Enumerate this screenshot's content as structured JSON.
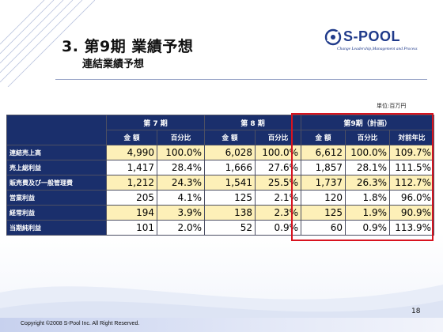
{
  "slide": {
    "title": "3. 第9期 業績予想",
    "subtitle": "連結業績予想",
    "page_number": "18",
    "copyright": "Copyright ©2008 S-Pool Inc. All Right Reserved."
  },
  "logo": {
    "name": "S-POOL",
    "tagline": "Change Leadership,Management and Process"
  },
  "table": {
    "unit": "単位:百万円",
    "groups": [
      "第 7 期",
      "第 8 期",
      "第9期（計画）"
    ],
    "subheaders": [
      "金 額",
      "百分比",
      "金 額",
      "百分比",
      "金 額",
      "百分比",
      "対前年比"
    ],
    "rows": [
      {
        "label": "連結売上高",
        "values": [
          "4,990",
          "100.0%",
          "6,028",
          "100.0%",
          "6,612",
          "100.0%",
          "109.7%"
        ]
      },
      {
        "label": "売上総利益",
        "values": [
          "1,417",
          "28.4%",
          "1,666",
          "27.6%",
          "1,857",
          "28.1%",
          "111.5%"
        ]
      },
      {
        "label": "販売費及び一般管理費",
        "values": [
          "1,212",
          "24.3%",
          "1,541",
          "25.5%",
          "1,737",
          "26.3%",
          "112.7%"
        ]
      },
      {
        "label": "営業利益",
        "values": [
          "205",
          "4.1%",
          "125",
          "2.1%",
          "120",
          "1.8%",
          "96.0%"
        ]
      },
      {
        "label": "経常利益",
        "values": [
          "194",
          "3.9%",
          "138",
          "2.3%",
          "125",
          "1.9%",
          "90.9%"
        ]
      },
      {
        "label": "当期純利益",
        "values": [
          "101",
          "2.0%",
          "52",
          "0.9%",
          "60",
          "0.9%",
          "113.9%"
        ]
      }
    ]
  },
  "colors": {
    "header_navy": "#1a2f6c",
    "highlight_row": "#fdf0b8",
    "plan_border": "#d8131f",
    "logo_blue": "#1f3a8a"
  }
}
